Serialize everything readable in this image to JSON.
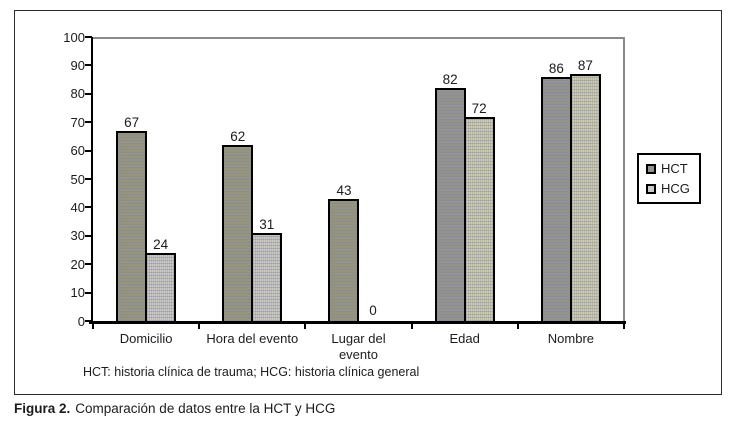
{
  "figure": {
    "note": "HCT: historia clínica de trauma; HCG: historia clínica general",
    "caption": {
      "label": "Figura 2.",
      "text": "Comparación de datos entre la HCT y HCG"
    }
  },
  "chart_data": {
    "type": "bar",
    "title": "",
    "xlabel": "",
    "ylabel": "",
    "categories": [
      "Domicilio",
      "Hora del evento",
      "Lugar del evento",
      "Edad",
      "Nombre"
    ],
    "series": [
      {
        "name": "HCT",
        "values": [
          67,
          62,
          43,
          82,
          86
        ],
        "color": "#94948e"
      },
      {
        "name": "HCG",
        "values": [
          24,
          31,
          0,
          72,
          87
        ],
        "color": "#cbcbc3"
      }
    ],
    "ylim": [
      0,
      100
    ],
    "ytick_step": 10,
    "grid": false,
    "value_labels": true,
    "legend_position": "right",
    "axis_color": "#000000",
    "frame_color": "#8a8a8a"
  }
}
